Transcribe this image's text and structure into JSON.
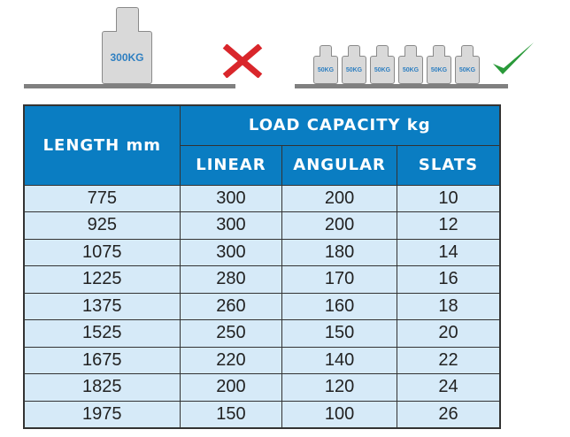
{
  "illustration": {
    "single_weight_label": "300KG",
    "small_weight_labels": [
      "50KG",
      "50KG",
      "50KG",
      "50KG",
      "50KG",
      "50KG"
    ],
    "wrong_icon": "cross-icon",
    "right_icon": "checkmark-icon",
    "colors": {
      "cross": "#d9262b",
      "check": "#2a9a3a",
      "weight_text": "#2e7fc1"
    }
  },
  "table": {
    "header_color": "#0a7dc2",
    "row_color": "#d6eaf8",
    "length_header": "LENGTH mm",
    "group_header": "LOAD CAPACITY kg",
    "sub_headers": [
      "LINEAR",
      "ANGULAR",
      "SLATS"
    ],
    "rows": [
      [
        "775",
        "300",
        "200",
        "10"
      ],
      [
        "925",
        "300",
        "200",
        "12"
      ],
      [
        "1075",
        "300",
        "180",
        "14"
      ],
      [
        "1225",
        "280",
        "170",
        "16"
      ],
      [
        "1375",
        "260",
        "160",
        "18"
      ],
      [
        "1525",
        "250",
        "150",
        "20"
      ],
      [
        "1675",
        "220",
        "140",
        "22"
      ],
      [
        "1825",
        "200",
        "120",
        "24"
      ],
      [
        "1975",
        "150",
        "100",
        "26"
      ]
    ]
  }
}
